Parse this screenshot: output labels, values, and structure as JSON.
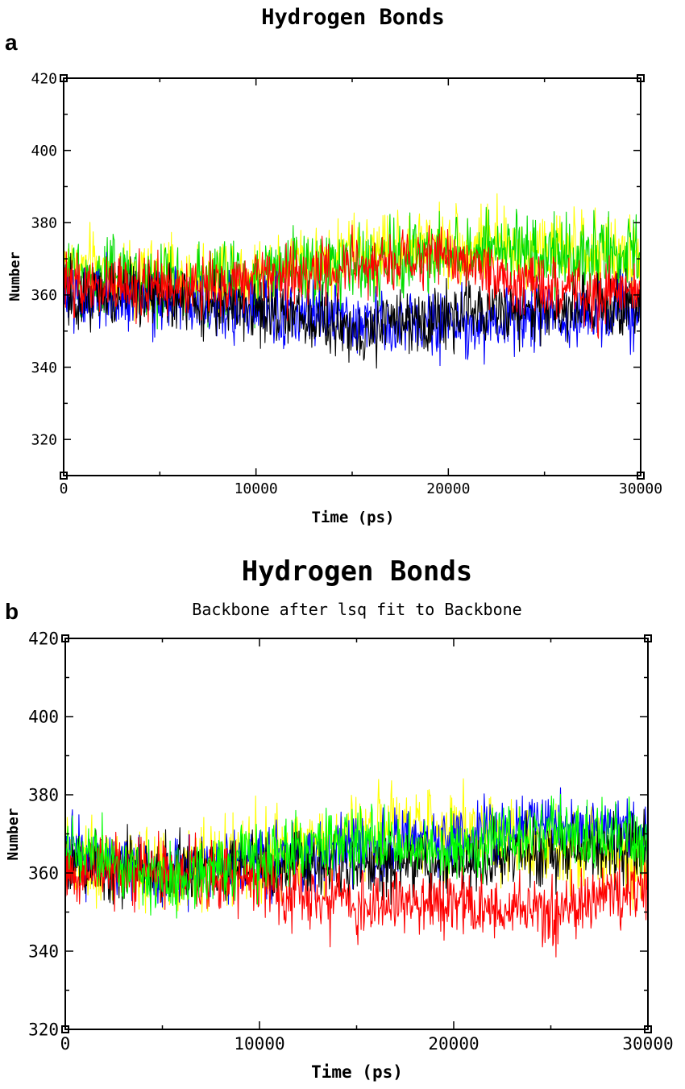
{
  "chart_data": [
    {
      "panel_label": "a",
      "type": "line",
      "title": "Hydrogen Bonds",
      "subtitle": "",
      "xlabel": "Time (ps)",
      "ylabel": "Number",
      "xlim": [
        0,
        30000
      ],
      "ylim": [
        310,
        420
      ],
      "xticks": [
        0,
        10000,
        20000,
        30000
      ],
      "yticks": [
        320,
        340,
        360,
        380,
        400,
        420
      ],
      "grid": false,
      "legend": "none",
      "series": [
        {
          "color": "#ffff00",
          "mean": [
            [
              0,
              368
            ],
            [
              5000,
              364
            ],
            [
              10000,
              366
            ],
            [
              15000,
              372
            ],
            [
              20000,
              374
            ],
            [
              25000,
              372
            ],
            [
              30000,
              370
            ]
          ],
          "spread": 15
        },
        {
          "color": "#00dd00",
          "mean": [
            [
              0,
              366
            ],
            [
              5000,
              364
            ],
            [
              10000,
              365
            ],
            [
              15000,
              368
            ],
            [
              20000,
              372
            ],
            [
              25000,
              372
            ],
            [
              30000,
              370
            ]
          ],
          "spread": 15
        },
        {
          "color": "#0000ff",
          "mean": [
            [
              0,
              360
            ],
            [
              5000,
              358
            ],
            [
              10000,
              356
            ],
            [
              15000,
              352
            ],
            [
              20000,
              352
            ],
            [
              25000,
              354
            ],
            [
              30000,
              356
            ]
          ],
          "spread": 13
        },
        {
          "color": "#000000",
          "mean": [
            [
              0,
              360
            ],
            [
              5000,
              360
            ],
            [
              10000,
              356
            ],
            [
              15000,
              350
            ],
            [
              20000,
              354
            ],
            [
              25000,
              356
            ],
            [
              30000,
              358
            ]
          ],
          "spread": 13
        },
        {
          "color": "#ff0000",
          "mean": [
            [
              0,
              362
            ],
            [
              5000,
              362
            ],
            [
              10000,
              364
            ],
            [
              15000,
              368
            ],
            [
              20000,
              370
            ],
            [
              25000,
              362
            ],
            [
              30000,
              360
            ]
          ],
          "spread": 12
        }
      ]
    },
    {
      "panel_label": "b",
      "type": "line",
      "title": "Hydrogen Bonds",
      "subtitle": "Backbone after lsq fit to Backbone",
      "xlabel": "Time (ps)",
      "ylabel": "Number",
      "xlim": [
        0,
        30000
      ],
      "ylim": [
        320,
        420
      ],
      "xticks": [
        0,
        10000,
        20000,
        30000
      ],
      "yticks": [
        320,
        340,
        360,
        380,
        400,
        420
      ],
      "grid": false,
      "legend": "none",
      "series": [
        {
          "color": "#ffff00",
          "mean": [
            [
              0,
              362
            ],
            [
              5000,
              360
            ],
            [
              10000,
              364
            ],
            [
              15000,
              370
            ],
            [
              20000,
              372
            ],
            [
              25000,
              368
            ],
            [
              30000,
              364
            ]
          ],
          "spread": 15
        },
        {
          "color": "#0000ff",
          "mean": [
            [
              0,
              366
            ],
            [
              5000,
              360
            ],
            [
              10000,
              364
            ],
            [
              15000,
              366
            ],
            [
              20000,
              368
            ],
            [
              25000,
              374
            ],
            [
              30000,
              370
            ]
          ],
          "spread": 12
        },
        {
          "color": "#000000",
          "mean": [
            [
              0,
              364
            ],
            [
              5000,
              360
            ],
            [
              10000,
              362
            ],
            [
              15000,
              362
            ],
            [
              20000,
              362
            ],
            [
              25000,
              366
            ],
            [
              30000,
              366
            ]
          ],
          "spread": 12
        },
        {
          "color": "#ff0000",
          "mean": [
            [
              0,
              360
            ],
            [
              5000,
              360
            ],
            [
              10000,
              358
            ],
            [
              15000,
              352
            ],
            [
              20000,
              352
            ],
            [
              25000,
              350
            ],
            [
              30000,
              356
            ]
          ],
          "spread": 12
        },
        {
          "color": "#00ff00",
          "mean": [
            [
              0,
              366
            ],
            [
              5000,
              358
            ],
            [
              10000,
              364
            ],
            [
              15000,
              368
            ],
            [
              20000,
              366
            ],
            [
              25000,
              370
            ],
            [
              30000,
              368
            ]
          ],
          "spread": 12
        }
      ]
    }
  ]
}
